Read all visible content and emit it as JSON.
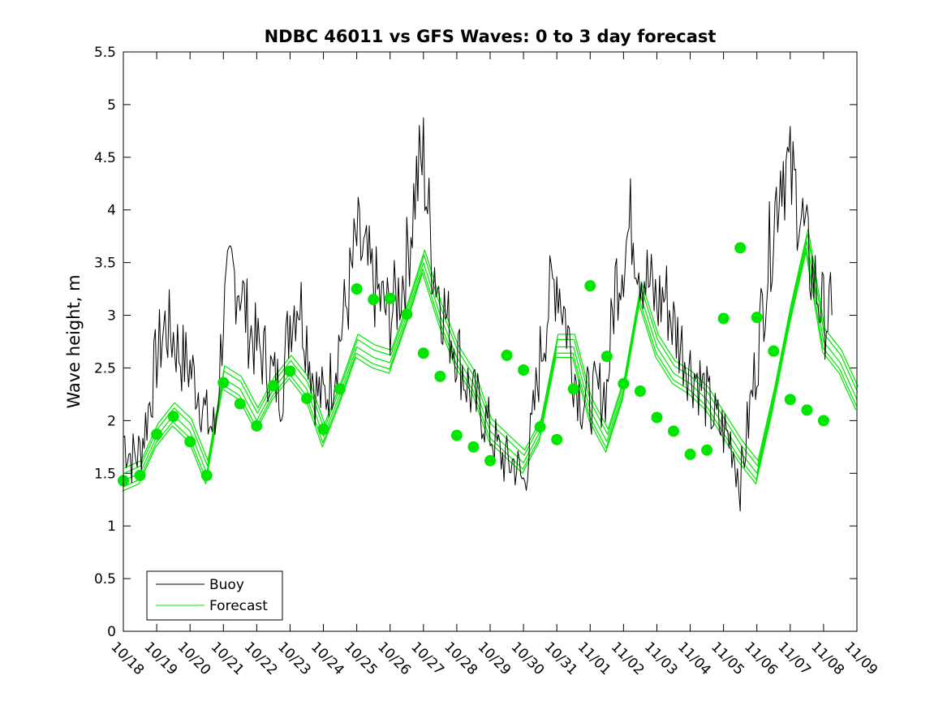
{
  "chart_data": {
    "type": "line",
    "title": "NDBC 46011 vs GFS Waves: 0 to 3 day forecast",
    "xlabel": "",
    "ylabel": "Wave height, m",
    "xlim": [
      0,
      22
    ],
    "ylim": [
      0,
      5.5
    ],
    "yticks": [
      0,
      0.5,
      1,
      1.5,
      2,
      2.5,
      3,
      3.5,
      4,
      4.5,
      5,
      5.5
    ],
    "ytick_labels": [
      "0",
      "0.5",
      "1",
      "1.5",
      "2",
      "2.5",
      "3",
      "3.5",
      "4",
      "4.5",
      "5",
      "5.5"
    ],
    "xticks": [
      0,
      1,
      2,
      3,
      4,
      5,
      6,
      7,
      8,
      9,
      10,
      11,
      12,
      13,
      14,
      15,
      16,
      17,
      18,
      19,
      20,
      21,
      22
    ],
    "xtick_labels": [
      "10/18",
      "10/19",
      "10/20",
      "10/21",
      "10/22",
      "10/23",
      "10/24",
      "10/25",
      "10/26",
      "10/27",
      "10/28",
      "10/29",
      "10/30",
      "10/31",
      "11/01",
      "11/02",
      "11/03",
      "11/04",
      "11/05",
      "11/06",
      "11/07",
      "11/08",
      "11/09"
    ],
    "legend": {
      "position": "bottom-left",
      "entries": [
        {
          "label": "Buoy",
          "color": "#000000"
        },
        {
          "label": "Forecast",
          "color": "#00e600"
        }
      ]
    },
    "series": [
      {
        "name": "Buoy",
        "color": "#000000",
        "x": [
          0,
          0.25,
          0.5,
          0.75,
          1,
          1.25,
          1.5,
          1.75,
          2,
          2.25,
          2.5,
          2.75,
          3,
          3.25,
          3.5,
          3.75,
          4,
          4.25,
          4.5,
          4.75,
          5,
          5.25,
          5.5,
          5.75,
          6,
          6.25,
          6.5,
          6.75,
          7,
          7.25,
          7.5,
          7.75,
          8,
          8.25,
          8.5,
          8.75,
          9,
          9.25,
          9.5,
          9.75,
          10,
          10.25,
          10.5,
          10.75,
          11,
          11.25,
          11.5,
          11.75,
          12,
          12.25,
          12.5,
          12.75,
          13,
          13.25,
          13.5,
          13.75,
          14,
          14.25,
          14.5,
          14.75,
          15,
          15.25,
          15.5,
          15.75,
          16,
          16.25,
          16.5,
          16.75,
          17,
          17.25,
          17.5,
          17.75,
          18,
          18.25,
          18.5,
          18.75,
          19,
          19.25,
          19.5,
          19.75,
          20,
          20.25,
          20.5,
          20.75,
          21,
          21.25
        ],
        "values": [
          1.85,
          1.65,
          1.7,
          2.1,
          2.6,
          2.9,
          2.8,
          2.6,
          2.5,
          2.3,
          2.0,
          1.9,
          3.0,
          3.4,
          3.3,
          2.9,
          2.7,
          2.6,
          2.4,
          2.3,
          3.0,
          3.2,
          2.8,
          2.3,
          2.2,
          2.4,
          2.8,
          3.2,
          3.7,
          3.5,
          3.3,
          3.1,
          3.0,
          3.2,
          3.5,
          4.2,
          4.5,
          3.6,
          3.2,
          2.9,
          2.7,
          2.4,
          2.2,
          2.1,
          1.9,
          1.7,
          1.6,
          1.6,
          1.4,
          1.9,
          2.6,
          3.1,
          3.4,
          3.0,
          2.5,
          2.2,
          2.2,
          2.25,
          2.3,
          3.3,
          3.6,
          3.9,
          3.5,
          3.3,
          3.1,
          3.2,
          2.9,
          2.7,
          2.5,
          2.4,
          2.2,
          2.0,
          1.9,
          1.8,
          1.4,
          2.0,
          2.6,
          3.3,
          3.9,
          4.5,
          4.3,
          4.1,
          3.6,
          3.3,
          3.0,
          3.0
        ]
      },
      {
        "name": "Forecast",
        "color": "#00e600",
        "x": [
          0,
          0.5,
          1,
          1.5,
          2,
          2.5,
          3,
          3.5,
          4,
          4.5,
          5,
          5.5,
          6,
          6.5,
          7,
          7.5,
          8,
          8.5,
          9,
          9.5,
          10,
          10.5,
          11,
          11.5,
          12,
          12.5,
          13,
          13.5,
          14,
          14.5,
          15,
          15.5,
          16,
          16.5,
          17,
          17.5,
          18,
          18.5,
          19,
          19.5,
          20,
          20.5,
          21,
          21.5,
          22
        ],
        "values": [
          1.43,
          1.5,
          1.85,
          2.05,
          1.9,
          1.5,
          2.4,
          2.3,
          2.0,
          2.3,
          2.5,
          2.3,
          1.85,
          2.25,
          2.7,
          2.6,
          2.55,
          3.0,
          3.5,
          3.0,
          2.6,
          2.35,
          1.9,
          1.75,
          1.6,
          1.9,
          2.7,
          2.7,
          2.1,
          1.8,
          2.3,
          3.2,
          2.7,
          2.45,
          2.35,
          2.2,
          1.95,
          1.7,
          1.5,
          2.2,
          3.0,
          3.7,
          2.75,
          2.55,
          2.2
        ]
      },
      {
        "name": "Forecast markers",
        "color": "#00e600",
        "x": [
          0,
          0.5,
          1,
          1.5,
          2,
          2.5,
          3,
          3.5,
          4,
          4.5,
          5,
          5.5,
          6,
          6.5,
          7,
          7.5,
          8,
          8.5,
          9,
          9.5,
          10,
          10.5,
          11,
          11.5,
          12,
          12.5,
          13,
          13.5,
          14,
          14.5,
          15,
          15.5,
          16,
          16.5,
          17,
          17.5,
          18,
          18.5,
          19,
          19.5,
          20,
          20.5,
          21
        ],
        "values": [
          1.43,
          1.48,
          1.87,
          2.04,
          1.8,
          1.48,
          2.36,
          2.16,
          1.95,
          2.33,
          2.47,
          2.21,
          1.92,
          2.3,
          3.25,
          3.15,
          3.16,
          3.01,
          2.64,
          2.42,
          1.86,
          1.75,
          1.62,
          2.62,
          2.48,
          1.94,
          1.82,
          2.3,
          3.28,
          2.61,
          2.35,
          2.28,
          2.03,
          1.9,
          1.68,
          1.72,
          2.97,
          3.64,
          2.98,
          2.66,
          2.2,
          2.1,
          2.0
        ]
      }
    ]
  }
}
